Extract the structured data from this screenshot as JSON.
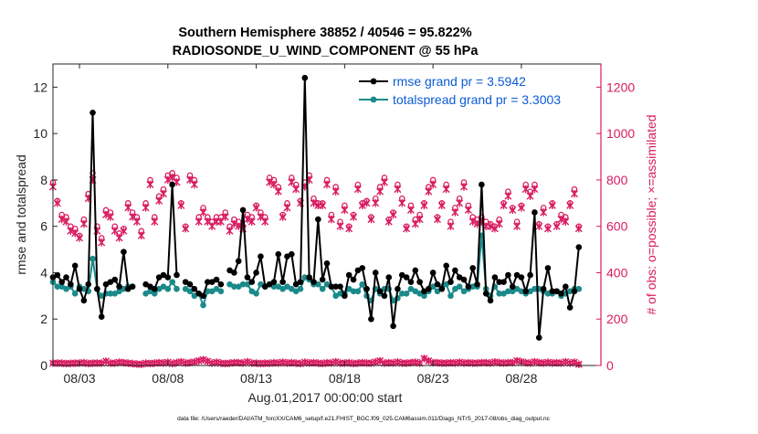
{
  "colors": {
    "rmse": "#000000",
    "spread": "#1a8a8a",
    "obs": "#d81b60",
    "legend_text": "#0b5bd6"
  },
  "chart_data": {
    "type": "line",
    "title_line1": "Southern Hemisphere 38852 / 40546 = 95.822%",
    "title_line2": "RADIOSONDE_U_WIND_COMPONENT @ 55 hPa",
    "ylabel_left": "rmse and totalspread",
    "ylabel_right": "# of obs: o=possible; ×=assimilated",
    "xlabel": "Aug.01,2017 00:00:00 start",
    "footer": "data file: /Users/raeder/DAI/ATM_forcXX/CAM6_setup/f.e21.FHIST_BGC.f09_025.CAM6assim.011/Diags_NTrS_2017-08/obs_diag_output.nc",
    "xlim": [
      1.5,
      32.5
    ],
    "ylim_left": [
      0,
      13
    ],
    "ylim_right": [
      0,
      1300
    ],
    "x_ticks": [
      {
        "x": 3,
        "label": "08/03"
      },
      {
        "x": 8,
        "label": "08/08"
      },
      {
        "x": 13,
        "label": "08/13"
      },
      {
        "x": 18,
        "label": "08/18"
      },
      {
        "x": 23,
        "label": "08/23"
      },
      {
        "x": 28,
        "label": "08/28"
      }
    ],
    "y_ticks_left": [
      0,
      2,
      4,
      6,
      8,
      10,
      12
    ],
    "y_ticks_right": [
      0,
      200,
      400,
      600,
      800,
      1000,
      1200
    ],
    "legend": [
      "rmse grand pr = 3.5942",
      "totalspread grand pr = 3.3003"
    ],
    "x_step": 0.25,
    "x_start": 1.5,
    "series": [
      {
        "name": "rmse",
        "values": [
          3.8,
          3.9,
          3.6,
          3.8,
          3.5,
          4.3,
          3.3,
          2.8,
          3.5,
          10.9,
          3.3,
          2.1,
          3.5,
          3.6,
          3.7,
          3.4,
          4.9,
          3.3,
          3.4,
          null,
          null,
          3.5,
          3.4,
          3.3,
          3.8,
          3.9,
          3.8,
          7.8,
          3.9,
          null,
          3.6,
          3.5,
          3.3,
          3.1,
          3.0,
          3.6,
          3.6,
          3.7,
          3.5,
          null,
          4.1,
          4.0,
          4.5,
          6.7,
          3.8,
          3.6,
          4.0,
          4.7,
          3.4,
          3.5,
          3.6,
          4.8,
          3.6,
          4.7,
          4.8,
          3.5,
          3.6,
          12.4,
          3.8,
          3.6,
          6.3,
          3.7,
          4.4,
          3.4,
          3.4,
          3.4,
          3.0,
          3.9,
          3.7,
          4.1,
          4.2,
          3.3,
          2.0,
          4.0,
          3.2,
          3.0,
          3.8,
          1.7,
          3.3,
          3.9,
          3.8,
          3.6,
          4.1,
          3.6,
          3.2,
          3.3,
          4.0,
          3.5,
          3.3,
          4.3,
          3.6,
          4.1,
          3.8,
          3.7,
          3.4,
          4.2,
          3.5,
          7.8,
          3.1,
          2.8,
          3.8,
          3.6,
          3.6,
          3.9,
          3.4,
          3.9,
          3.8,
          3.2,
          3.9,
          6.6,
          1.2,
          3.3,
          4.2,
          3.2,
          3.2,
          3.1,
          3.4,
          2.5,
          3.2,
          5.1
        ]
      },
      {
        "name": "totalspread",
        "values": [
          3.6,
          3.4,
          3.4,
          3.3,
          3.4,
          3.1,
          3.4,
          3.3,
          3.2,
          4.6,
          3.3,
          3.0,
          3.1,
          3.1,
          3.1,
          3.2,
          3.3,
          3.4,
          3.4,
          null,
          null,
          3.1,
          3.2,
          3.1,
          3.3,
          3.4,
          3.3,
          3.6,
          3.3,
          null,
          3.3,
          3.2,
          3.0,
          3.1,
          2.6,
          3.2,
          3.2,
          3.3,
          3.2,
          null,
          3.5,
          3.4,
          3.4,
          3.5,
          3.5,
          3.2,
          3.1,
          3.5,
          3.4,
          3.5,
          3.4,
          3.4,
          3.3,
          3.4,
          3.3,
          3.2,
          3.3,
          3.8,
          3.7,
          3.5,
          3.5,
          3.3,
          3.5,
          3.4,
          3.0,
          3.1,
          3.1,
          3.3,
          3.2,
          3.2,
          3.5,
          3.0,
          2.8,
          3.3,
          3.1,
          3.3,
          3.3,
          2.8,
          2.9,
          3.1,
          3.1,
          3.3,
          3.2,
          3.1,
          3.0,
          3.2,
          3.4,
          3.2,
          3.4,
          3.5,
          3.0,
          3.3,
          3.4,
          3.2,
          3.3,
          3.4,
          3.4,
          5.6,
          3.3,
          3.0,
          3.4,
          3.1,
          3.1,
          3.2,
          3.2,
          3.3,
          3.2,
          3.1,
          3.2,
          3.3,
          3.3,
          3.2,
          3.1,
          3.1,
          3.2,
          3.0,
          3.1,
          3.2,
          3.3,
          3.3
        ]
      },
      {
        "name": "obs_possible",
        "values": [
          790,
          710,
          650,
          640,
          600,
          590,
          560,
          630,
          740,
          830,
          600,
          550,
          670,
          660,
          600,
          570,
          590,
          700,
          660,
          640,
          580,
          700,
          800,
          640,
          730,
          760,
          820,
          830,
          810,
          700,
          600,
          820,
          800,
          640,
          680,
          640,
          620,
          640,
          640,
          660,
          600,
          630,
          620,
          600,
          650,
          640,
          690,
          660,
          640,
          810,
          800,
          770,
          650,
          700,
          810,
          780,
          710,
          790,
          820,
          720,
          700,
          700,
          800,
          650,
          770,
          620,
          690,
          600,
          650,
          780,
          700,
          710,
          640,
          720,
          770,
          810,
          630,
          660,
          780,
          720,
          600,
          690,
          630,
          650,
          700,
          770,
          800,
          640,
          700,
          780,
          620,
          680,
          720,
          790,
          690,
          640,
          630,
          640,
          620,
          610,
          600,
          630,
          700,
          750,
          680,
          620,
          690,
          780,
          750,
          780,
          610,
          680,
          600,
          700,
          610,
          650,
          640,
          700,
          760,
          600
        ]
      },
      {
        "name": "obs_assimilated",
        "values": [
          770,
          700,
          630,
          620,
          580,
          570,
          550,
          610,
          720,
          800,
          580,
          530,
          650,
          640,
          580,
          550,
          580,
          680,
          640,
          620,
          560,
          680,
          780,
          620,
          710,
          740,
          800,
          810,
          790,
          690,
          590,
          800,
          780,
          620,
          660,
          620,
          600,
          620,
          620,
          640,
          580,
          610,
          600,
          590,
          630,
          620,
          680,
          640,
          620,
          790,
          780,
          750,
          640,
          680,
          790,
          760,
          700,
          770,
          800,
          700,
          690,
          690,
          780,
          630,
          750,
          600,
          670,
          590,
          640,
          760,
          690,
          700,
          630,
          700,
          750,
          790,
          620,
          650,
          760,
          700,
          590,
          670,
          610,
          630,
          690,
          750,
          780,
          630,
          690,
          760,
          600,
          660,
          700,
          770,
          670,
          620,
          610,
          620,
          600,
          600,
          590,
          610,
          690,
          730,
          670,
          600,
          680,
          760,
          730,
          760,
          600,
          660,
          590,
          690,
          600,
          630,
          620,
          690,
          740,
          590
        ]
      },
      {
        "name": "obs_low",
        "values": [
          10,
          10,
          10,
          8,
          9,
          10,
          10,
          12,
          8,
          10,
          10,
          10,
          18,
          10,
          10,
          14,
          12,
          10,
          8,
          6,
          5,
          10,
          8,
          10,
          12,
          10,
          14,
          8,
          12,
          16,
          10,
          12,
          15,
          20,
          25,
          18,
          10,
          14,
          10,
          8,
          10,
          12,
          12,
          10,
          16,
          10,
          10,
          8,
          10,
          9,
          12,
          10,
          14,
          10,
          12,
          10,
          8,
          14,
          10,
          12,
          10,
          8,
          12,
          10,
          16,
          10,
          10,
          12,
          8,
          10,
          12,
          10,
          10,
          15,
          20,
          10,
          12,
          10,
          15,
          10,
          10,
          12,
          14,
          10,
          30,
          20,
          12,
          12,
          10,
          10,
          12,
          10,
          14,
          10,
          12,
          10,
          10,
          12,
          12,
          10,
          15,
          12,
          10,
          12,
          12,
          20,
          16,
          12,
          10,
          16,
          12,
          10,
          14,
          10,
          12,
          10,
          16,
          10,
          14,
          5
        ]
      }
    ]
  }
}
